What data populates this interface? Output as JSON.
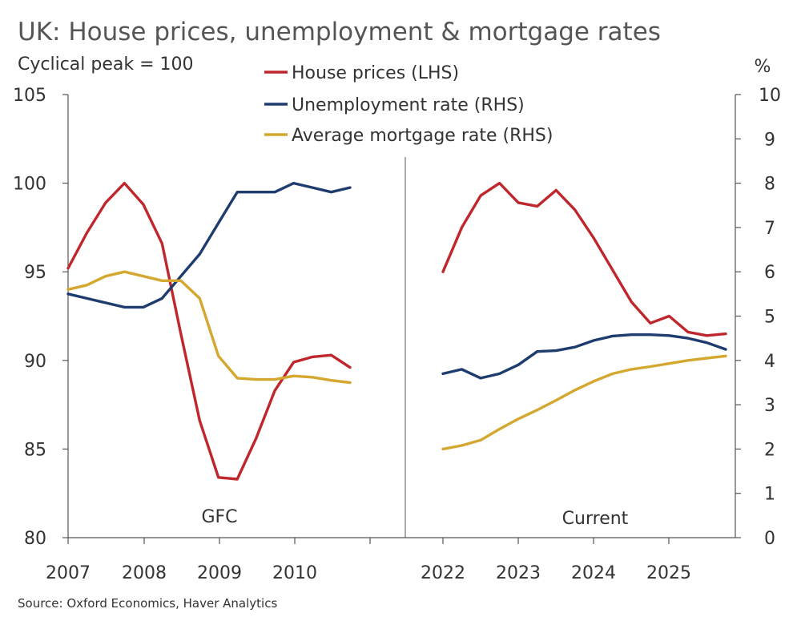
{
  "title": "UK: House prices, unemployment & mortgage rates",
  "subtitle": "Cyclical peak = 100",
  "source": "Source: Oxford Economics, Haver Analytics",
  "colors": {
    "house": "#c0272d",
    "unemp": "#1f3c6e",
    "mortgage": "#d4a830",
    "axis": "#555555"
  },
  "chart_data": {
    "type": "line",
    "left_axis": {
      "label": "",
      "ylim": [
        80,
        105
      ],
      "ticks": [
        80,
        85,
        90,
        95,
        100,
        105
      ]
    },
    "right_axis": {
      "label": "%",
      "ylim": [
        0,
        10
      ],
      "ticks": [
        0,
        1,
        2,
        3,
        4,
        5,
        6,
        7,
        8,
        9,
        10
      ]
    },
    "legend": {
      "placement": "top-center",
      "entries": [
        "House prices (LHS)",
        "Unemployment rate (RHS)",
        "Average mortgage rate (RHS)"
      ]
    },
    "panels": [
      {
        "label": "GFC",
        "x_ticks": [
          "2007",
          "2008",
          "2009",
          "2010"
        ],
        "x": [
          "2007-Q1",
          "2007-Q2",
          "2007-Q3",
          "2007-Q4",
          "2008-Q1",
          "2008-Q2",
          "2008-Q3",
          "2008-Q4",
          "2009-Q1",
          "2009-Q2",
          "2009-Q3",
          "2009-Q4",
          "2010-Q1",
          "2010-Q2",
          "2010-Q3",
          "2010-Q4"
        ],
        "series": [
          {
            "name": "House prices (LHS)",
            "axis": "left",
            "values": [
              95.2,
              97.2,
              98.9,
              100.0,
              98.8,
              96.6,
              91.5,
              86.6,
              83.4,
              83.3,
              85.6,
              88.3,
              89.9,
              90.2,
              90.3,
              89.6
            ]
          },
          {
            "name": "Unemployment rate (RHS)",
            "axis": "right",
            "values": [
              5.5,
              5.4,
              5.3,
              5.2,
              5.2,
              5.4,
              5.9,
              6.4,
              7.1,
              7.8,
              7.8,
              7.8,
              8.0,
              7.9,
              7.8,
              7.9
            ]
          },
          {
            "name": "Average mortgage rate (RHS)",
            "axis": "right",
            "values": [
              5.6,
              5.7,
              5.9,
              6.0,
              5.9,
              5.8,
              5.8,
              5.4,
              4.1,
              3.6,
              3.57,
              3.57,
              3.65,
              3.62,
              3.55,
              3.5
            ]
          }
        ]
      },
      {
        "label": "Current",
        "x_ticks": [
          "2022",
          "2023",
          "2024",
          "2025"
        ],
        "x": [
          "2022-Q1",
          "2022-Q2",
          "2022-Q3",
          "2022-Q4",
          "2023-Q1",
          "2023-Q2",
          "2023-Q3",
          "2023-Q4",
          "2024-Q1",
          "2024-Q2",
          "2024-Q3",
          "2024-Q4",
          "2025-Q1",
          "2025-Q2",
          "2025-Q3",
          "2025-Q4"
        ],
        "series": [
          {
            "name": "House prices (LHS)",
            "axis": "left",
            "values": [
              95.0,
              97.5,
              99.3,
              100.0,
              98.9,
              98.7,
              99.6,
              98.5,
              96.9,
              95.1,
              93.3,
              92.1,
              92.5,
              91.6,
              91.4,
              91.5
            ]
          },
          {
            "name": "Unemployment rate (RHS)",
            "axis": "right",
            "values": [
              3.7,
              3.8,
              3.6,
              3.7,
              3.9,
              4.2,
              4.22,
              4.3,
              4.45,
              4.55,
              4.58,
              4.58,
              4.56,
              4.5,
              4.4,
              4.25
            ]
          },
          {
            "name": "Average mortgage rate (RHS)",
            "axis": "right",
            "values": [
              2.0,
              2.08,
              2.2,
              2.45,
              2.68,
              2.88,
              3.1,
              3.33,
              3.53,
              3.7,
              3.8,
              3.86,
              3.93,
              4.0,
              4.05,
              4.1
            ]
          }
        ]
      }
    ]
  }
}
